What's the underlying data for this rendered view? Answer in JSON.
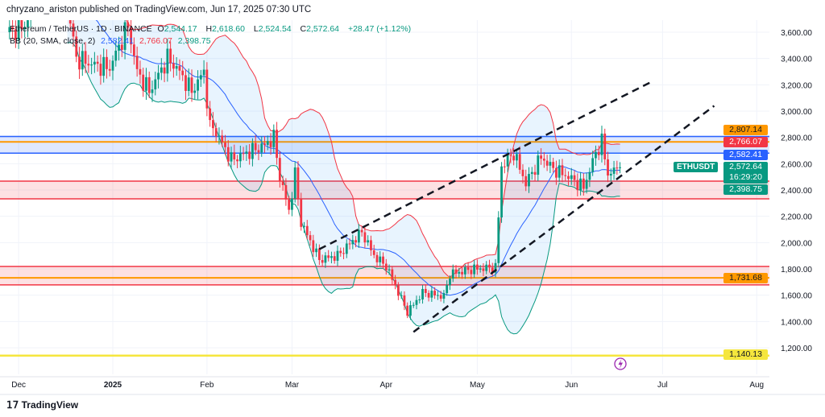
{
  "header": {
    "published": "chryzano_ariston published on TradingView.com, Jun 17, 2025 07:30 UTC"
  },
  "legend": {
    "symbol": "Ethereum / TetherUS · 1D · BINANCE",
    "o_label": "O",
    "o": "2,544.17",
    "h_label": "H",
    "h": "2,618.60",
    "l_label": "L",
    "l": "2,524.54",
    "c_label": "C",
    "c": "2,572.64",
    "change": "+28.47 (+1.12%)",
    "bb_label": "BB (20, SMA, close, 2)",
    "bb_basis": "2,582.41",
    "bb_upper": "2,766.07",
    "bb_lower": "2,398.75"
  },
  "price_tags": {
    "resistance": "2,807.14",
    "bb_upper": "2,766.07",
    "bb_basis": "2,582.41",
    "last": "2,572.64",
    "countdown": "16:29:20",
    "bb_lower": "2,398.75",
    "support": "1,731.68",
    "low_level": "1,140.13",
    "symbol": "ETHUSDT"
  },
  "branding": {
    "logo": "TradingView"
  },
  "colors": {
    "up": "#089981",
    "down": "#f23645",
    "basis": "#2962ff",
    "upper": "#f23645",
    "lower": "#089981",
    "orange": "#ff9800",
    "yellow": "#f5e63d",
    "zone_blue": "#2962ff",
    "zone_red": "#f23645"
  },
  "chart_data": {
    "type": "candlestick",
    "symbol": "ETHUSDT",
    "interval": "1D",
    "ylim": [
      1100,
      3700
    ],
    "y_ticks": [
      "3,600.00",
      "3,400.00",
      "3,200.00",
      "3,000.00",
      "2,800.00",
      "2,600.00",
      "2,400.00",
      "2,200.00",
      "2,000.00",
      "1,800.00",
      "1,600.00",
      "1,400.00",
      "1,200.00"
    ],
    "x_ticks": [
      {
        "label": "Dec",
        "date": "2024-12-01"
      },
      {
        "label": "2025",
        "date": "2025-01-01"
      },
      {
        "label": "Feb",
        "date": "2025-02-01"
      },
      {
        "label": "Mar",
        "date": "2025-03-01"
      },
      {
        "label": "Apr",
        "date": "2025-04-01"
      },
      {
        "label": "May",
        "date": "2025-05-01"
      },
      {
        "label": "Jun",
        "date": "2025-06-01"
      },
      {
        "label": "Jul",
        "date": "2025-07-01"
      },
      {
        "label": "Aug",
        "date": "2025-08-01"
      }
    ],
    "grid": true,
    "approx_closes": [
      [
        "2024-11-28",
        3600
      ],
      [
        "2024-12-03",
        3650
      ],
      [
        "2024-12-08",
        3950
      ],
      [
        "2024-12-16",
        3950
      ],
      [
        "2024-12-20",
        3400
      ],
      [
        "2024-12-26",
        3350
      ],
      [
        "2024-12-31",
        3330
      ],
      [
        "2025-01-06",
        3650
      ],
      [
        "2025-01-09",
        3300
      ],
      [
        "2025-01-13",
        3150
      ],
      [
        "2025-01-19",
        3400
      ],
      [
        "2025-01-22",
        3330
      ],
      [
        "2025-01-27",
        3150
      ],
      [
        "2025-01-31",
        3300
      ],
      [
        "2025-02-02",
        2870
      ],
      [
        "2025-02-03",
        2880
      ],
      [
        "2025-02-09",
        2630
      ],
      [
        "2025-02-20",
        2740
      ],
      [
        "2025-02-23",
        2800
      ],
      [
        "2025-02-25",
        2500
      ],
      [
        "2025-02-28",
        2240
      ],
      [
        "2025-03-02",
        2520
      ],
      [
        "2025-03-04",
        2150
      ],
      [
        "2025-03-10",
        1870
      ],
      [
        "2025-03-16",
        1900
      ],
      [
        "2025-03-24",
        2080
      ],
      [
        "2025-03-28",
        1900
      ],
      [
        "2025-04-01",
        1820
      ],
      [
        "2025-04-06",
        1570
      ],
      [
        "2025-04-08",
        1470
      ],
      [
        "2025-04-13",
        1620
      ],
      [
        "2025-04-20",
        1590
      ],
      [
        "2025-04-22",
        1760
      ],
      [
        "2025-04-30",
        1800
      ],
      [
        "2025-05-07",
        1810
      ],
      [
        "2025-05-08",
        2200
      ],
      [
        "2025-05-09",
        2580
      ],
      [
        "2025-05-13",
        2680
      ],
      [
        "2025-05-17",
        2450
      ],
      [
        "2025-05-22",
        2650
      ],
      [
        "2025-05-26",
        2560
      ],
      [
        "2025-05-31",
        2500
      ],
      [
        "2025-06-05",
        2420
      ],
      [
        "2025-06-09",
        2680
      ],
      [
        "2025-06-11",
        2770
      ],
      [
        "2025-06-13",
        2520
      ],
      [
        "2025-06-17",
        2572.64
      ]
    ],
    "indicator": {
      "name": "Bollinger Bands",
      "length": 20,
      "type": "SMA",
      "source": "close",
      "mult": 2
    },
    "zones": [
      {
        "color": "blue",
        "from": 2680,
        "to": 2807.14
      },
      {
        "color": "red",
        "from": 2333,
        "to": 2467
      },
      {
        "color": "red",
        "from": 1678,
        "to": 1818
      }
    ],
    "levels": [
      {
        "color": "orange",
        "price": 2766.07
      },
      {
        "color": "orange",
        "price": 1731.68
      },
      {
        "color": "yellow",
        "price": 1140.13
      }
    ],
    "trendlines": [
      {
        "style": "dashed",
        "from": [
          "2025-03-10",
          1950
        ],
        "to": [
          "2025-06-28",
          3230
        ]
      },
      {
        "style": "dashed",
        "from": [
          "2025-04-10",
          1320
        ],
        "to": [
          "2025-07-18",
          3040
        ]
      }
    ]
  }
}
